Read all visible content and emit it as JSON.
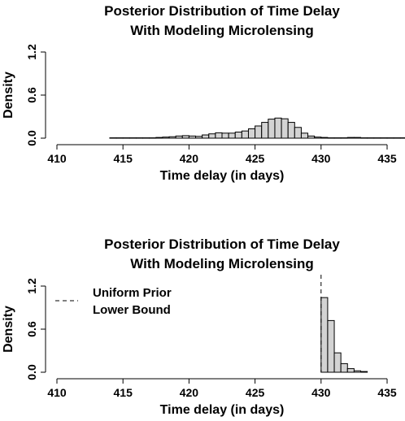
{
  "chart_data": [
    {
      "type": "bar",
      "title": "Posterior Distribution of Time Delay",
      "subtitle": "With Modeling Microlensing",
      "xlabel": "Time delay (in days)",
      "ylabel": "Density",
      "xlim": [
        410,
        435
      ],
      "ylim": [
        0,
        1.2
      ],
      "xticks": [
        "410",
        "415",
        "420",
        "425",
        "430",
        "435"
      ],
      "yticks": [
        "0.0",
        "0.6",
        "1.2"
      ],
      "bin_width": 0.5,
      "bin_edges_start": 414.0,
      "values": [
        0.005,
        0.005,
        0.005,
        0.005,
        0.005,
        0.005,
        0.005,
        0.01,
        0.015,
        0.02,
        0.03,
        0.035,
        0.03,
        0.025,
        0.045,
        0.06,
        0.075,
        0.07,
        0.07,
        0.085,
        0.1,
        0.13,
        0.17,
        0.22,
        0.265,
        0.28,
        0.27,
        0.22,
        0.15,
        0.07,
        0.03,
        0.015,
        0.01,
        0.005,
        0.005,
        0.005,
        0.01,
        0.01,
        0.005,
        0.005,
        0.005,
        0.005,
        0.005,
        0.005,
        0.005,
        0.005,
        0.005
      ]
    },
    {
      "type": "bar",
      "title": "Posterior Distribution of Time Delay",
      "subtitle": "With Modeling Microlensing",
      "xlabel": "Time delay (in days)",
      "ylabel": "Density",
      "xlim": [
        410,
        435
      ],
      "ylim": [
        0,
        1.2
      ],
      "xticks": [
        "410",
        "415",
        "420",
        "425",
        "430",
        "435"
      ],
      "yticks": [
        "0.0",
        "0.6",
        "1.2"
      ],
      "bin_width": 0.5,
      "bin_edges_start": 430.0,
      "values": [
        1.04,
        0.72,
        0.27,
        0.12,
        0.05,
        0.02,
        0.01
      ],
      "vline": 430,
      "legend": {
        "label_line1": "Uniform Prior",
        "label_line2": "Lower Bound",
        "position": "top-left"
      }
    }
  ]
}
